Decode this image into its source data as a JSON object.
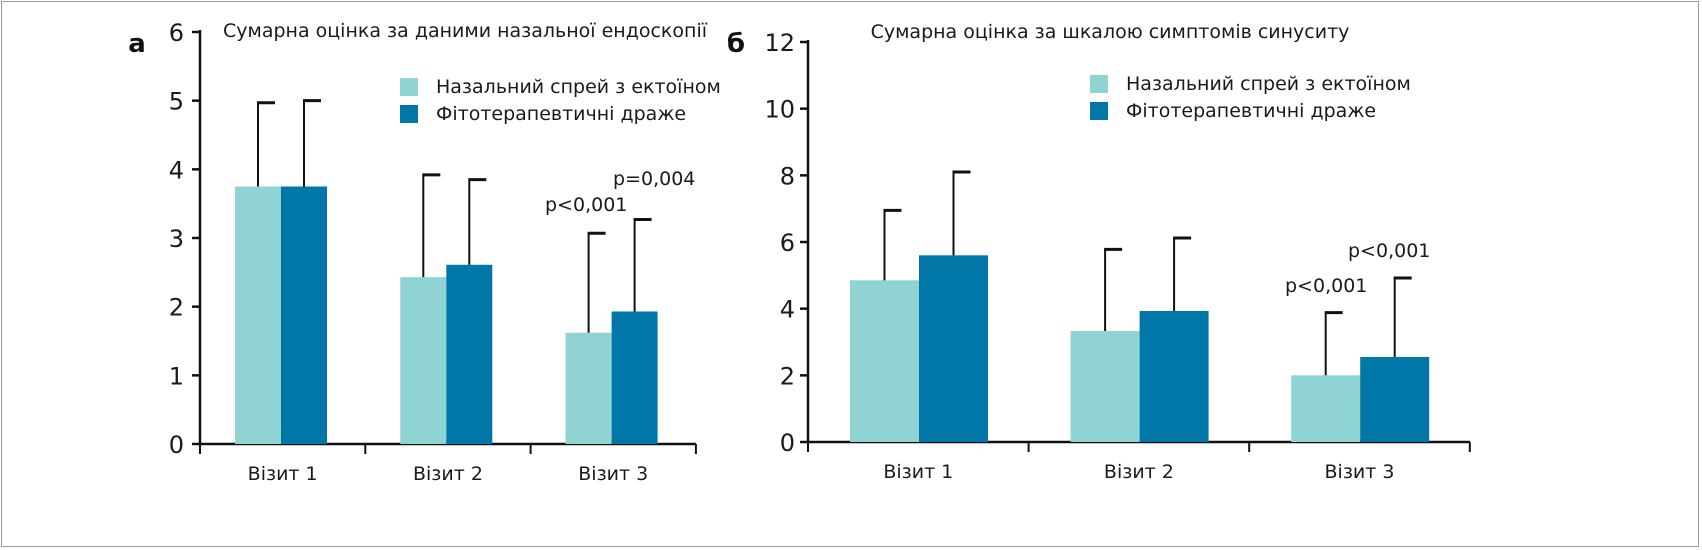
{
  "chart_data": [
    {
      "type": "bar",
      "panel_label": "a",
      "title": "Сумарна оцінка за даними назальної ендоскопії",
      "categories": [
        "Візит 1",
        "Візит 2",
        "Візит 3"
      ],
      "series": [
        {
          "name": "Назальний спрей з ектоїном",
          "color": "#8fd3d3",
          "values": [
            3.75,
            2.43,
            1.62
          ],
          "error_upper": [
            4.97,
            3.92,
            3.07
          ]
        },
        {
          "name": "Фітотерапевтичні драже",
          "color": "#0077a6",
          "values": [
            3.75,
            2.61,
            1.93
          ],
          "error_upper": [
            5.0,
            3.85,
            3.27
          ]
        }
      ],
      "annotations": [
        "p<0,001",
        "p=0,004"
      ],
      "yticks": [
        "0",
        "1",
        "2",
        "3",
        "4",
        "5",
        "6"
      ],
      "ylim": [
        0,
        6
      ],
      "legend_position": "top-right"
    },
    {
      "type": "bar",
      "panel_label": "б",
      "title": "Сумарна оцінка за шкалою симптомів синуситу",
      "categories": [
        "Візит 1",
        "Візит 2",
        "Візит 3"
      ],
      "series": [
        {
          "name": "Назальний спрей з ектоїном",
          "color": "#8fd3d3",
          "values": [
            4.85,
            3.33,
            2.0
          ],
          "error_upper": [
            6.95,
            5.78,
            3.88
          ]
        },
        {
          "name": "Фітотерапевтичні драже",
          "color": "#0077a6",
          "values": [
            5.6,
            3.93,
            2.55
          ],
          "error_upper": [
            8.1,
            6.12,
            4.92
          ]
        }
      ],
      "annotations": [
        "p<0,001",
        "p<0,001"
      ],
      "yticks": [
        "0",
        "2",
        "4",
        "6",
        "8",
        "10",
        "12"
      ],
      "ylim": [
        0,
        12
      ],
      "legend_position": "top-right"
    }
  ]
}
